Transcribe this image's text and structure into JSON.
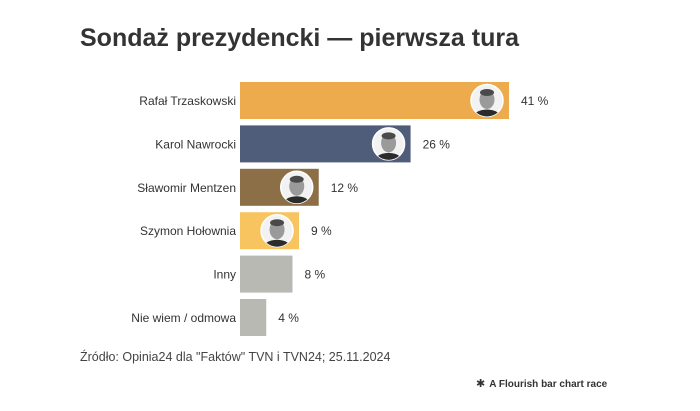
{
  "title": "Sondaż prezydencki — pierwsza tura",
  "source": "Źródło: Opinia24 dla \"Faktów\" TVN i TVN24; 25.11.2024",
  "credit": {
    "icon": "flourish-star-icon",
    "text": "A Flourish bar chart race"
  },
  "chart_data": {
    "type": "bar",
    "orientation": "horizontal",
    "title": "Sondaż prezydencki — pierwsza tura",
    "xlabel": "",
    "ylabel": "",
    "xlim": [
      0,
      41
    ],
    "grid": false,
    "categories": [
      "Rafał Trzaskowski",
      "Karol Nawrocki",
      "Sławomir Mentzen",
      "Szymon Hołownia",
      "Inny",
      "Nie wiem / odmowa"
    ],
    "values": [
      41,
      26,
      12,
      9,
      8,
      4
    ],
    "labels": [
      "41 %",
      "26 %",
      "12 %",
      "9 %",
      "8 %",
      "4 %"
    ],
    "colors": [
      "#EDAB4D",
      "#4F5C7A",
      "#8C6E47",
      "#F7C460",
      "#B9B9B3",
      "#B9B9B3"
    ],
    "has_photo": [
      true,
      true,
      true,
      true,
      false,
      false
    ]
  }
}
